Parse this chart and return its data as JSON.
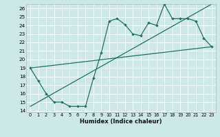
{
  "xlabel": "Humidex (Indice chaleur)",
  "xlim": [
    -0.5,
    23.5
  ],
  "ylim": [
    13.8,
    26.5
  ],
  "yticks": [
    14,
    15,
    16,
    17,
    18,
    19,
    20,
    21,
    22,
    23,
    24,
    25,
    26
  ],
  "xticks": [
    0,
    1,
    2,
    3,
    4,
    5,
    6,
    7,
    8,
    9,
    10,
    11,
    12,
    13,
    14,
    15,
    16,
    17,
    18,
    19,
    20,
    21,
    22,
    23
  ],
  "bg_color": "#cce8e8",
  "grid_color": "#b8d8d8",
  "line_color": "#1a7068",
  "main_x": [
    0,
    1,
    2,
    3,
    4,
    5,
    6,
    7,
    8,
    9,
    10,
    11,
    12,
    13,
    14,
    15,
    16,
    17,
    18,
    19,
    20,
    21,
    22,
    23
  ],
  "main_y": [
    19.0,
    17.5,
    16.0,
    15.0,
    15.0,
    14.5,
    14.5,
    14.5,
    17.8,
    20.8,
    24.5,
    24.8,
    24.1,
    23.0,
    22.8,
    24.3,
    24.0,
    26.5,
    24.8,
    24.8,
    24.8,
    24.5,
    22.5,
    21.5
  ],
  "trend1_x": [
    0,
    23
  ],
  "trend1_y": [
    19.0,
    21.5
  ],
  "trend2_x": [
    0,
    23
  ],
  "trend2_y": [
    14.5,
    26.5
  ]
}
